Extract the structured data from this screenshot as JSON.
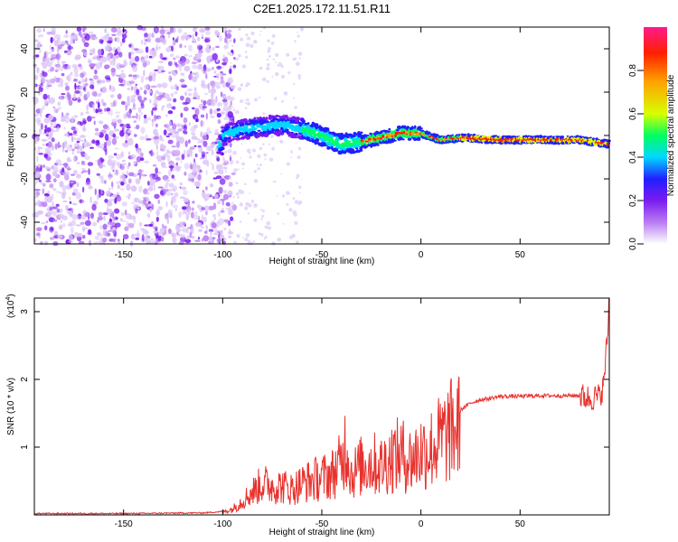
{
  "title": "C2E1.2025.172.11.51.R11",
  "chart_data": [
    {
      "type": "heatmap",
      "xlabel": "Height of straight line (km)",
      "ylabel": "Frequency (Hz)",
      "xlim": [
        -195,
        95
      ],
      "ylim": [
        -50,
        50
      ],
      "xticks": [
        -150,
        -100,
        -50,
        0,
        50
      ],
      "yticks": [
        -40,
        -20,
        0,
        20,
        40
      ],
      "colorbar": {
        "label": "Normalized spectral amplitude",
        "range": [
          0,
          1
        ],
        "ticks": [
          0.0,
          0.2,
          0.4,
          0.6,
          0.8
        ],
        "tick_labels": [
          "0.0",
          "0.2",
          "0.4",
          "0.6",
          "0.8"
        ],
        "colormap": [
          "#ffffff",
          "#b87cf2",
          "#7a1cf0",
          "#2020ff",
          "#00d8ff",
          "#00ff60",
          "#d8ff00",
          "#ffa000",
          "#ff2000",
          "#ff1a8c"
        ]
      },
      "ridge": {
        "x": [
          -100,
          -90,
          -80,
          -70,
          -60,
          -50,
          -40,
          -30,
          -20,
          -10,
          0,
          10,
          20,
          40,
          60,
          80,
          95
        ],
        "y": [
          0,
          3,
          4,
          5,
          3,
          0,
          -4,
          -3,
          -1,
          1,
          1,
          -2,
          -1,
          -2,
          -2,
          -2,
          -4
        ]
      },
      "noise_region_x": [
        -195,
        -100
      ]
    },
    {
      "type": "line",
      "xlabel": "Height of straight line (km)",
      "ylabel": "SNR (10 * v/v)",
      "y_multiplier_label": "(x10",
      "y_multiplier_exp": "4",
      "y_multiplier_close": ")",
      "xlim": [
        -195,
        95
      ],
      "ylim": [
        0,
        3.2
      ],
      "xticks": [
        -150,
        -100,
        -50,
        0,
        50
      ],
      "yticks": [
        1,
        2,
        3
      ],
      "color": "#e8322e",
      "series": [
        {
          "x": [
            -195,
            -150,
            -110,
            -100,
            -95,
            -90,
            -85,
            -80,
            -75,
            -70,
            -65,
            -60,
            -55,
            -50,
            -45,
            -40,
            -38,
            -35,
            -30,
            -25,
            -20,
            -15,
            -10,
            -5,
            0,
            5,
            10,
            15,
            20,
            25,
            30,
            35,
            40,
            50,
            60,
            70,
            80,
            85,
            90,
            92,
            94,
            95
          ],
          "y": [
            0.02,
            0.02,
            0.03,
            0.05,
            0.1,
            0.25,
            0.4,
            0.55,
            0.5,
            0.5,
            0.45,
            0.55,
            0.6,
            0.65,
            0.7,
            0.9,
            1.25,
            0.7,
            0.85,
            0.9,
            0.85,
            1.0,
            1.05,
            0.95,
            1.1,
            1.15,
            1.3,
            1.45,
            1.55,
            1.65,
            1.7,
            1.72,
            1.75,
            1.75,
            1.76,
            1.76,
            1.76,
            1.72,
            1.75,
            1.9,
            2.6,
            3.2
          ]
        }
      ]
    }
  ]
}
